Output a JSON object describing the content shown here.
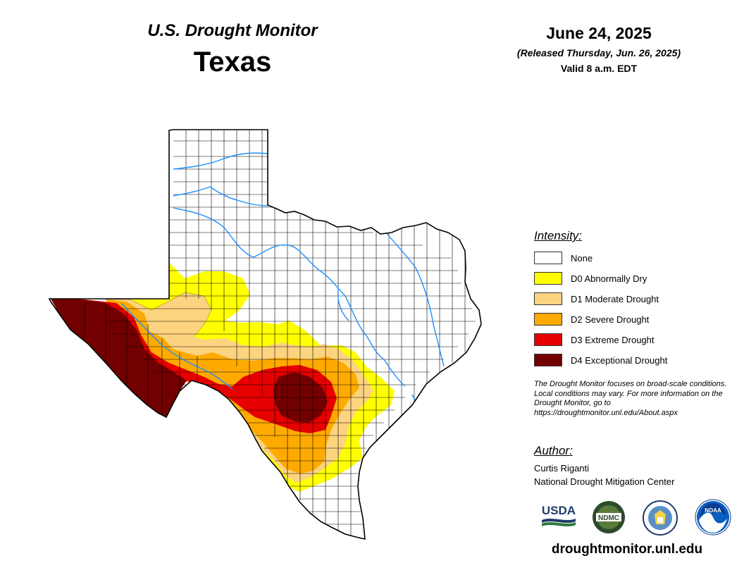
{
  "header": {
    "product": "U.S. Drought Monitor",
    "state": "Texas",
    "date": "June 24, 2025",
    "released": "(Released Thursday, Jun. 26, 2025)",
    "valid": "Valid 8 a.m. EDT"
  },
  "legend": {
    "title": "Intensity:",
    "items": [
      {
        "label": "None",
        "color": "#ffffff"
      },
      {
        "label": "D0 Abnormally Dry",
        "color": "#ffff00"
      },
      {
        "label": "D1 Moderate Drought",
        "color": "#fcd37f"
      },
      {
        "label": "D2 Severe Drought",
        "color": "#ffaa00"
      },
      {
        "label": "D3 Extreme Drought",
        "color": "#e60000"
      },
      {
        "label": "D4 Exceptional Drought",
        "color": "#730000"
      }
    ]
  },
  "disclaimer": "The Drought Monitor focuses on broad-scale conditions. Local conditions may vary. For more information on the Drought Monitor, go to https://droughtmonitor.unl.edu/About.aspx",
  "author": {
    "title": "Author:",
    "name": "Curtis Riganti",
    "organization": "National Drought Mitigation Center"
  },
  "logos": {
    "usda": "USDA",
    "ndmc": "NDMC",
    "noaa": "NOAA"
  },
  "website": "droughtmonitor.unl.edu",
  "colors": {
    "river": "#1e90ff",
    "border": "#000000",
    "county_line": "#000000"
  }
}
